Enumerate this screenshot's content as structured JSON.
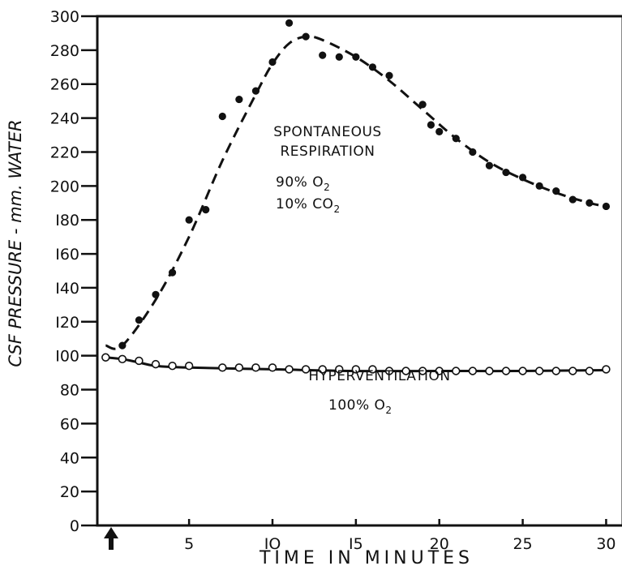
{
  "chart_data": {
    "type": "scatter",
    "xlabel": "TIME IN MINUTES",
    "ylabel": "CSF PRESSURE - mm. WATER",
    "xlim": [
      -0.5,
      31
    ],
    "ylim": [
      0,
      300
    ],
    "xticks": [
      5,
      10,
      15,
      20,
      25,
      30
    ],
    "xtick_labels": [
      "5",
      "IO",
      "I5",
      "20",
      "25",
      "30"
    ],
    "yticks": [
      0,
      20,
      40,
      60,
      80,
      100,
      120,
      140,
      160,
      180,
      200,
      220,
      240,
      260,
      280,
      300
    ],
    "ytick_labels": [
      "0",
      "20",
      "40",
      "60",
      "80",
      "I00",
      "I20",
      "I40",
      "I60",
      "I80",
      "200",
      "220",
      "240",
      "260",
      "280",
      "300"
    ],
    "grid": false,
    "start_marker": "arrow at time 0",
    "series": [
      {
        "marker": "filled-circle",
        "line_style": "dashed",
        "x": [
          1,
          2,
          3,
          4,
          5,
          6,
          7,
          8,
          9,
          10,
          11,
          12,
          13,
          14,
          15,
          16,
          17,
          19,
          19.5,
          20,
          21,
          22,
          23,
          24,
          25,
          26,
          27,
          28,
          29,
          30
        ],
        "y": [
          106,
          121,
          136,
          149,
          180,
          186,
          241,
          251,
          256,
          273,
          296,
          288,
          277,
          276,
          276,
          270,
          265,
          248,
          236,
          232,
          228,
          220,
          212,
          208,
          205,
          200,
          197,
          192,
          190,
          188
        ]
      },
      {
        "marker": "open-circle",
        "line_style": "solid",
        "x": [
          0,
          1,
          2,
          3,
          4,
          5,
          7,
          8,
          9,
          10,
          11,
          12,
          13,
          14,
          15,
          16,
          17,
          18,
          19,
          20,
          21,
          22,
          23,
          24,
          25,
          26,
          27,
          28,
          29,
          30
        ],
        "y": [
          99,
          98,
          97,
          95,
          94,
          94,
          93,
          93,
          93,
          93,
          92,
          92,
          92,
          92,
          92,
          92,
          91,
          91,
          91,
          91,
          91,
          91,
          91,
          91,
          91,
          91,
          91,
          91,
          91,
          92
        ]
      }
    ],
    "annotations": {
      "spont_line1": "SPONTANEOUS",
      "spont_line2": "RESPIRATION",
      "spont_gas1": "90% O",
      "spont_gas2": "10% CO",
      "hyper_line1": "HYPERVENTILATION",
      "hyper_gas": "100% O",
      "subscript": "2"
    }
  }
}
